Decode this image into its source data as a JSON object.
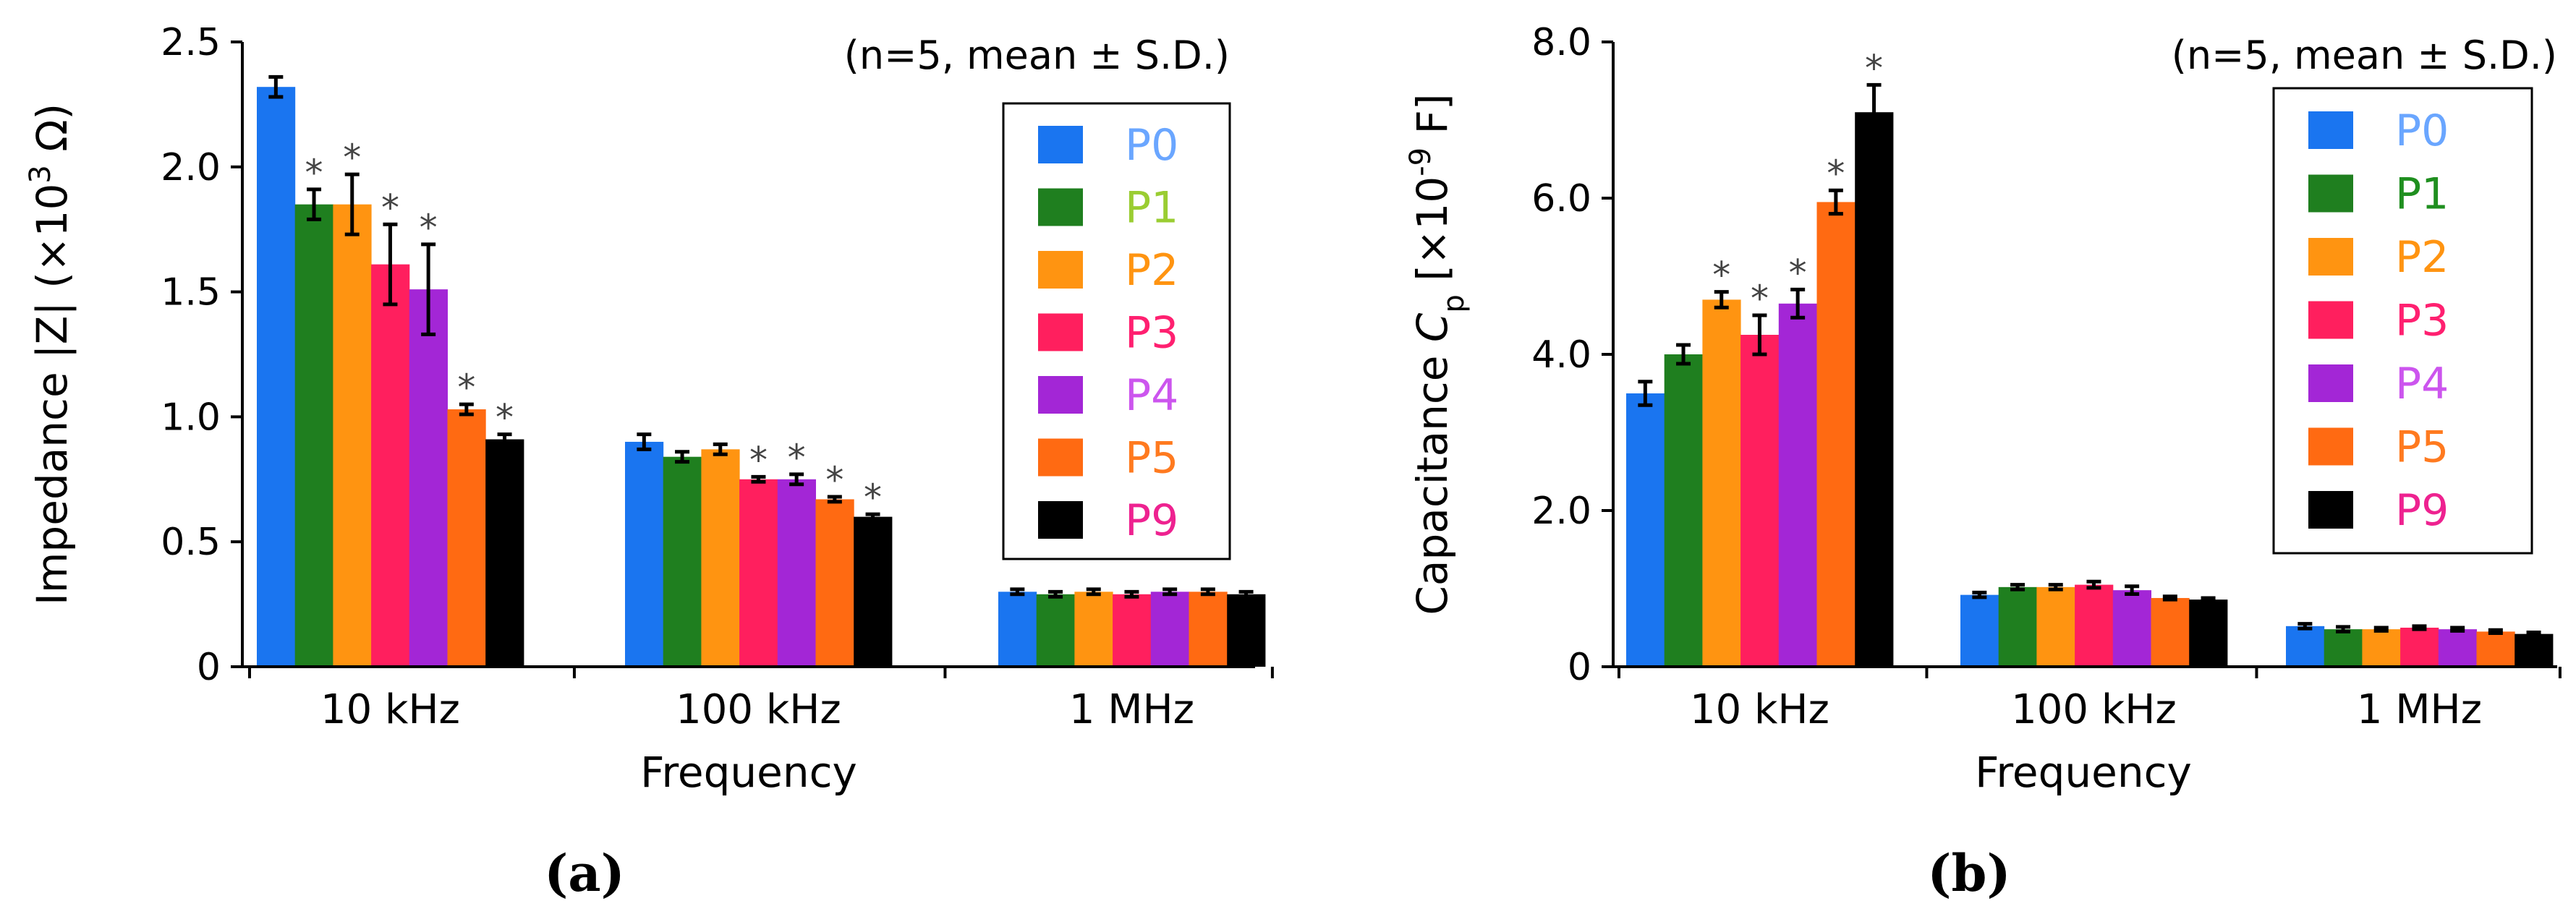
{
  "colors": {
    "P0": "#1a75f0",
    "P1": "#1f7f1f",
    "P2": "#ff9411",
    "P3": "#ff1f5e",
    "P4": "#a326d6",
    "P5": "#ff6a12",
    "P9": "#000000"
  },
  "legend_text_colors": {
    "P0": "#6aa6ff",
    "P1a": "#9acd32",
    "P1b": "#1f8f1f",
    "P2": "#ff9411",
    "P3": "#ff2070",
    "P4": "#cc55ee",
    "P5": "#ff7a1f",
    "P9a": "#ee2290",
    "P9b": "#000000"
  },
  "chart_data": [
    {
      "type": "bar",
      "panel_label": "(a)",
      "annotation": "(n=5, mean ± S.D.)",
      "xlabel": "Frequency",
      "ylabel_prefix": "Impedance |Z| (×10",
      "ylabel_sup": "3",
      "ylabel_suffix": " Ω)",
      "categories": [
        "10 kHz",
        "100 kHz",
        "1 MHz"
      ],
      "ylim": [
        0,
        2.5
      ],
      "yticks": [
        0,
        0.5,
        1.0,
        1.5,
        2.0,
        2.5
      ],
      "ytick_labels": [
        "0",
        "0.5",
        "1.0",
        "1.5",
        "2.0",
        "2.5"
      ],
      "legend": [
        "P0",
        "P1",
        "P2",
        "P3",
        "P4",
        "P5",
        "P9"
      ],
      "star_symbol": "*",
      "series": [
        {
          "name": "P0",
          "values": [
            2.32,
            0.9,
            0.3
          ],
          "errors": [
            0.04,
            0.03,
            0.01
          ],
          "stars": [
            false,
            false,
            false
          ]
        },
        {
          "name": "P1",
          "values": [
            1.85,
            0.84,
            0.29
          ],
          "errors": [
            0.06,
            0.02,
            0.01
          ],
          "stars": [
            true,
            false,
            false
          ]
        },
        {
          "name": "P2",
          "values": [
            1.85,
            0.87,
            0.3
          ],
          "errors": [
            0.12,
            0.02,
            0.01
          ],
          "stars": [
            true,
            false,
            false
          ]
        },
        {
          "name": "P3",
          "values": [
            1.61,
            0.75,
            0.29
          ],
          "errors": [
            0.16,
            0.01,
            0.01
          ],
          "stars": [
            true,
            true,
            false
          ]
        },
        {
          "name": "P4",
          "values": [
            1.51,
            0.75,
            0.3
          ],
          "errors": [
            0.18,
            0.02,
            0.01
          ],
          "stars": [
            true,
            true,
            false
          ]
        },
        {
          "name": "P5",
          "values": [
            1.03,
            0.67,
            0.3
          ],
          "errors": [
            0.02,
            0.01,
            0.01
          ],
          "stars": [
            true,
            true,
            false
          ]
        },
        {
          "name": "P9",
          "values": [
            0.91,
            0.6,
            0.29
          ],
          "errors": [
            0.02,
            0.01,
            0.01
          ],
          "stars": [
            true,
            true,
            false
          ]
        }
      ]
    },
    {
      "type": "bar",
      "panel_label": "(b)",
      "annotation": "(n=5, mean ± S.D.)",
      "xlabel": "Frequency",
      "ylabel_prefix": "Capacitance ",
      "ylabel_italic": "C",
      "ylabel_sub": "p",
      "ylabel_bracket": " [×10",
      "ylabel_sup": "-9",
      "ylabel_suffix": " F]",
      "categories": [
        "10 kHz",
        "100 kHz",
        "1 MHz"
      ],
      "ylim": [
        0,
        8.0
      ],
      "yticks": [
        0,
        2.0,
        4.0,
        6.0,
        8.0
      ],
      "ytick_labels": [
        "0",
        "2.0",
        "4.0",
        "6.0",
        "8.0"
      ],
      "legend": [
        "P0",
        "P1",
        "P2",
        "P3",
        "P4",
        "P5",
        "P9"
      ],
      "star_symbol": "*",
      "series": [
        {
          "name": "P0",
          "values": [
            3.5,
            0.92,
            0.52
          ],
          "errors": [
            0.15,
            0.03,
            0.03
          ],
          "stars": [
            false,
            false,
            false
          ]
        },
        {
          "name": "P1",
          "values": [
            4.0,
            1.02,
            0.48
          ],
          "errors": [
            0.12,
            0.03,
            0.03
          ],
          "stars": [
            false,
            false,
            false
          ]
        },
        {
          "name": "P2",
          "values": [
            4.7,
            1.02,
            0.48
          ],
          "errors": [
            0.1,
            0.03,
            0.02
          ],
          "stars": [
            true,
            false,
            false
          ]
        },
        {
          "name": "P3",
          "values": [
            4.25,
            1.05,
            0.5
          ],
          "errors": [
            0.25,
            0.04,
            0.02
          ],
          "stars": [
            true,
            false,
            false
          ]
        },
        {
          "name": "P4",
          "values": [
            4.65,
            0.98,
            0.48
          ],
          "errors": [
            0.18,
            0.05,
            0.02
          ],
          "stars": [
            true,
            false,
            false
          ]
        },
        {
          "name": "P5",
          "values": [
            5.95,
            0.88,
            0.45
          ],
          "errors": [
            0.15,
            0.02,
            0.02
          ],
          "stars": [
            true,
            false,
            false
          ]
        },
        {
          "name": "P9",
          "values": [
            7.1,
            0.86,
            0.42
          ],
          "errors": [
            0.35,
            0.02,
            0.02
          ],
          "stars": [
            true,
            false,
            false
          ]
        }
      ]
    }
  ]
}
